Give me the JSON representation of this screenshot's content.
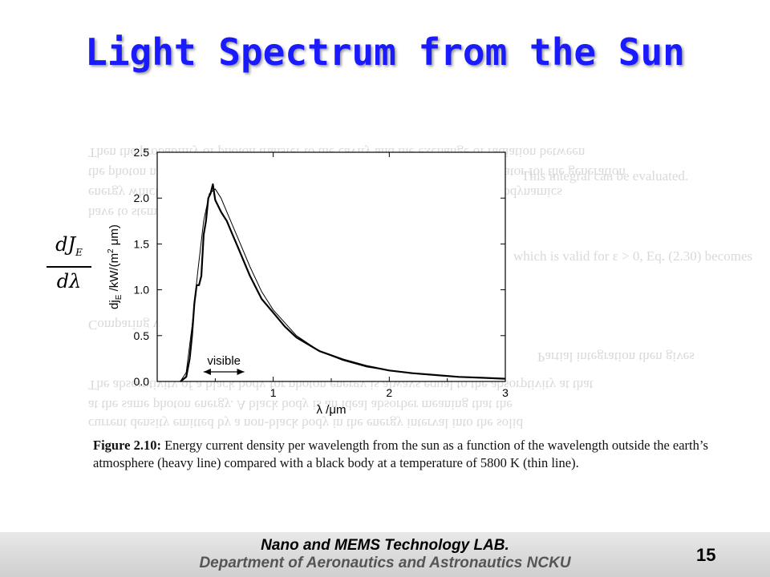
{
  "slide": {
    "title": "Light Spectrum from the Sun",
    "formula": {
      "numerator": "dJ",
      "numerator_sub": "E",
      "denominator": "dλ"
    },
    "figure_label": "Figure 2.10:",
    "figure_caption": "Energy current density per wavelength from the sun as a function of the wavelength outside the earth’s atmosphere (heavy line) compared with a black body at a temperature of 5800 K (thin line).",
    "footer_lab": "Nano and MEMS Technology LAB.",
    "footer_dept": "Department of Aeronautics and Astronautics NCKU",
    "page_number": "15"
  },
  "chart_data": {
    "type": "line",
    "xlabel": "λ /μm",
    "ylabel": "dj_E /kW/(m² μm)",
    "xlim": [
      0,
      3
    ],
    "ylim": [
      0,
      2.5
    ],
    "x_ticks": [
      "1",
      "2",
      "3"
    ],
    "y_ticks": [
      "0.0",
      "0.5",
      "1.0",
      "1.5",
      "2.0",
      "2.5"
    ],
    "annotation": "visible",
    "visible_range": [
      0.4,
      0.75
    ],
    "series": [
      {
        "style": "heavy",
        "x": [
          0.2,
          0.25,
          0.28,
          0.3,
          0.32,
          0.34,
          0.36,
          0.38,
          0.4,
          0.42,
          0.44,
          0.46,
          0.48,
          0.5,
          0.55,
          0.6,
          0.65,
          0.7,
          0.75,
          0.8,
          0.9,
          1.0,
          1.1,
          1.2,
          1.4,
          1.6,
          1.8,
          2.0,
          2.2,
          2.4,
          2.6,
          2.8,
          3.0
        ],
        "y": [
          0.0,
          0.05,
          0.25,
          0.5,
          0.85,
          1.05,
          1.05,
          1.15,
          1.6,
          1.75,
          2.0,
          2.05,
          2.15,
          1.98,
          1.85,
          1.75,
          1.6,
          1.45,
          1.3,
          1.15,
          0.9,
          0.75,
          0.6,
          0.48,
          0.33,
          0.24,
          0.17,
          0.12,
          0.09,
          0.07,
          0.05,
          0.04,
          0.03
        ]
      },
      {
        "style": "thin",
        "x": [
          0.2,
          0.25,
          0.3,
          0.35,
          0.4,
          0.45,
          0.5,
          0.55,
          0.6,
          0.7,
          0.8,
          0.9,
          1.0,
          1.2,
          1.4,
          1.6,
          1.8,
          2.0,
          2.2,
          2.4,
          2.6,
          2.8,
          3.0
        ],
        "y": [
          0.0,
          0.1,
          0.6,
          1.2,
          1.75,
          2.05,
          2.1,
          2.0,
          1.85,
          1.55,
          1.25,
          0.98,
          0.78,
          0.5,
          0.33,
          0.23,
          0.16,
          0.12,
          0.09,
          0.07,
          0.05,
          0.04,
          0.03
        ]
      }
    ]
  }
}
